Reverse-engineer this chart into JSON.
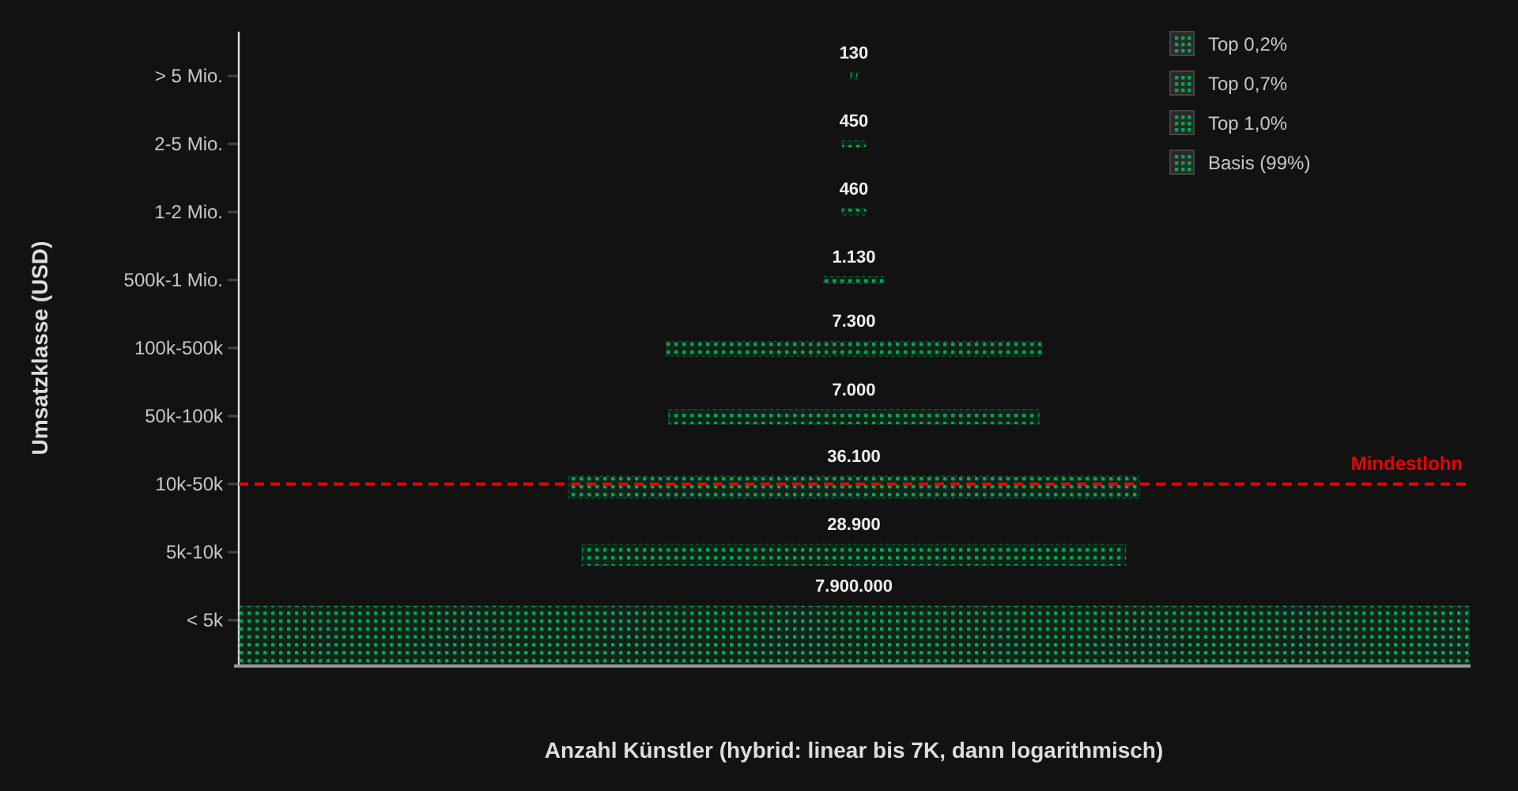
{
  "chart_data": {
    "type": "other",
    "xlabel": "Anzahl Künstler (hybrid: linear bis 7K, dann logarithmisch)",
    "ylabel": "Umsatzklasse (USD)",
    "categories": [
      "> 5 Mio.",
      "2-5 Mio.",
      "1-2 Mio.",
      "500k-1 Mio.",
      "100k-500k",
      "50k-100k",
      "10k-50k",
      "5k-10k",
      "< 5k"
    ],
    "series": [
      {
        "name": "Top 0,2%",
        "color": "#00a850",
        "values": [
          130,
          450,
          460,
          1130,
          7300,
          7000,
          null,
          null,
          null
        ],
        "value_labels": [
          "130",
          "450",
          "460",
          "1.130",
          "7.300",
          "7.000",
          null,
          null,
          null
        ]
      },
      {
        "name": "Top 0,7%",
        "color": "#00a850",
        "values": [
          null,
          null,
          null,
          null,
          null,
          null,
          36100,
          null,
          null
        ],
        "value_labels": [
          null,
          null,
          null,
          null,
          null,
          null,
          "36.100",
          null,
          null
        ]
      },
      {
        "name": "Top 1,0%",
        "color": "#00a850",
        "values": [
          null,
          null,
          null,
          null,
          null,
          null,
          null,
          28900,
          null
        ],
        "value_labels": [
          null,
          null,
          null,
          null,
          null,
          null,
          null,
          "28.900",
          null
        ]
      },
      {
        "name": "Basis (99%)",
        "color": "#00a850",
        "values": [
          null,
          null,
          null,
          null,
          null,
          null,
          null,
          null,
          7900000
        ],
        "value_labels": [
          null,
          null,
          null,
          null,
          null,
          null,
          null,
          null,
          "7.900.000"
        ]
      }
    ],
    "annotations": [
      {
        "text": "Mindestlohn",
        "y": "10k-50k"
      }
    ],
    "legend": "top right"
  }
}
